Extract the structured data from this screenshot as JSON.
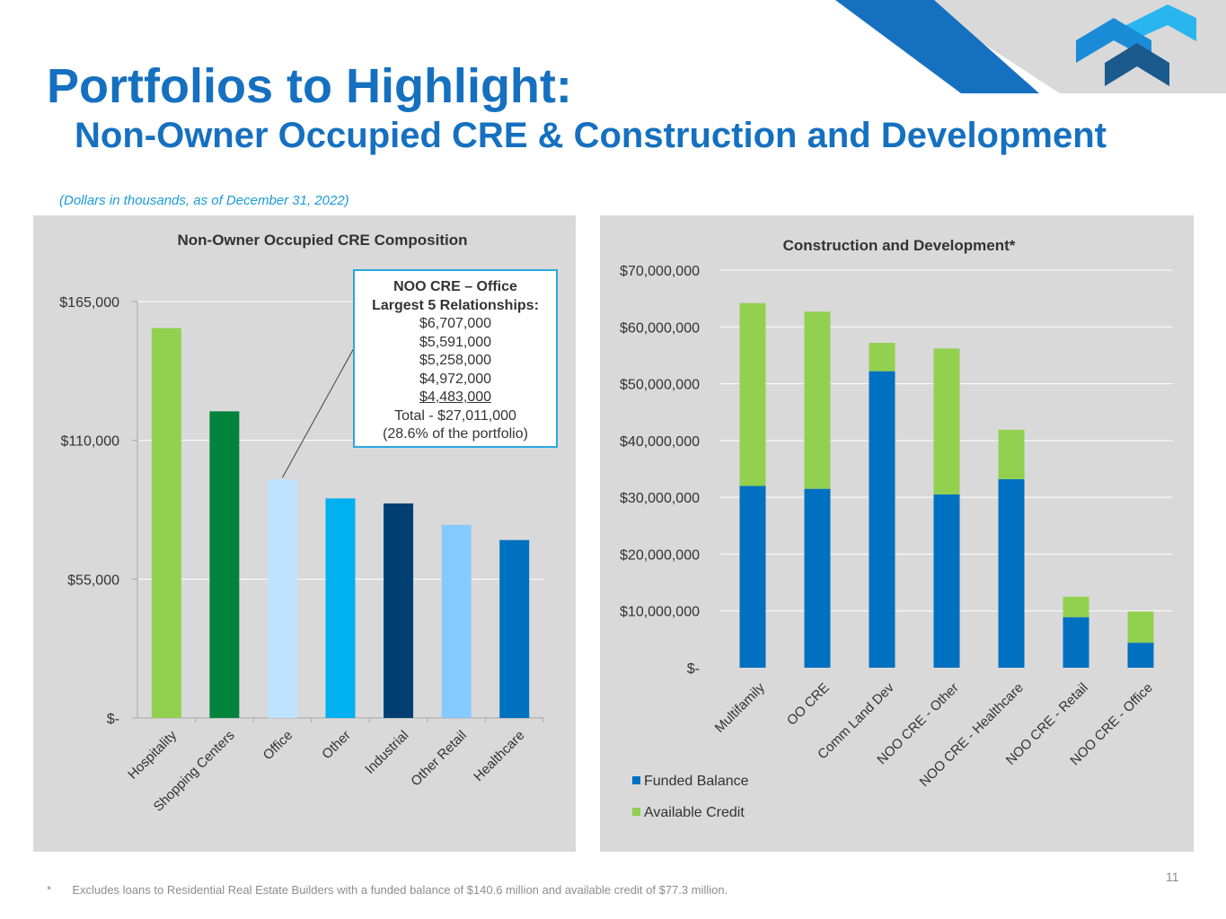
{
  "slide": {
    "title": "Portfolios to Highlight:",
    "subtitle": "Non-Owner Occupied CRE & Construction and Development",
    "note": "(Dollars in thousands, as of December 31, 2022)",
    "footnote_marker": "*",
    "footnote": "Excludes loans to Residential Real Estate Builders with a funded balance of $140.6 million and available credit of $77.3 million.",
    "page_number": "11"
  },
  "callout": {
    "heading1": "NOO CRE – Office",
    "heading2": "Largest 5 Relationships:",
    "lines": [
      "$6,707,000",
      "$5,591,000",
      "$5,258,000",
      "$4,972,000",
      "$4,483,000"
    ],
    "total": "Total - $27,011,000",
    "share": "(28.6% of the portfolio)"
  },
  "chart_data": [
    {
      "type": "bar",
      "title": "Non-Owner Occupied CRE Composition",
      "categories": [
        "Hospitality",
        "Shopping Centers",
        "Office",
        "Other",
        "Industrial",
        "Other Retail",
        "Healthcare"
      ],
      "values": [
        154500,
        121500,
        94500,
        87000,
        85000,
        76500,
        70500
      ],
      "colors": [
        "#92d050",
        "#00843d",
        "#bde3ff",
        "#00b0f0",
        "#003f72",
        "#85caff",
        "#0070c0"
      ],
      "ylim": [
        0,
        165000
      ],
      "yticks": [
        0,
        55000,
        110000,
        165000
      ],
      "ytick_labels": [
        "$-",
        "$55,000",
        "$110,000",
        "$165,000"
      ],
      "xlabel": "",
      "ylabel": "",
      "grid": true
    },
    {
      "type": "bar",
      "stacked": true,
      "title": "Construction and Development*",
      "categories": [
        "Multifamily",
        "OO CRE",
        "Comm Land Dev",
        "NOO CRE - Other",
        "NOO CRE - Healthcare",
        "NOO CRE - Retail",
        "NOO CRE - Office"
      ],
      "series": [
        {
          "name": "Funded Balance",
          "color": "#0070c0",
          "values": [
            32000000,
            31500000,
            52200000,
            30500000,
            33200000,
            8900000,
            4400000
          ]
        },
        {
          "name": "Available Credit",
          "color": "#92d050",
          "values": [
            32200000,
            31200000,
            5000000,
            25700000,
            8700000,
            3600000,
            5500000
          ]
        }
      ],
      "ylim": [
        0,
        70000000
      ],
      "yticks": [
        0,
        10000000,
        20000000,
        30000000,
        40000000,
        50000000,
        60000000,
        70000000
      ],
      "ytick_labels": [
        "$-",
        "$10,000,000",
        "$20,000,000",
        "$30,000,000",
        "$40,000,000",
        "$50,000,000",
        "$60,000,000",
        "$70,000,000"
      ],
      "legend": "bottom-left",
      "xlabel": "",
      "ylabel": "",
      "grid": true
    }
  ]
}
